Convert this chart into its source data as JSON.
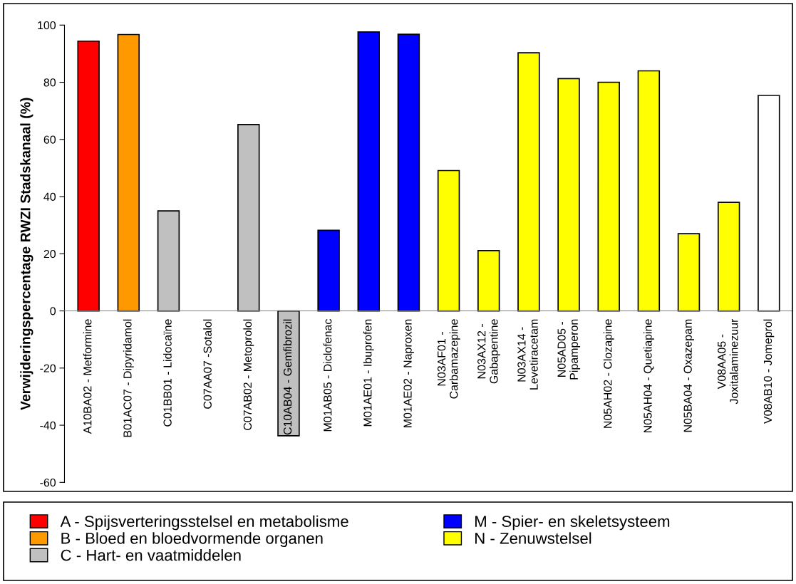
{
  "chart_data": {
    "type": "bar",
    "ylabel": "Verwijderingspercentage RWZI Stadskanaal (%)",
    "categories": [
      "A10BA02 - Metformine",
      "B01AC07 - Dipyridamol",
      "C01BB01 - Lidocaïne",
      "C07AA07 -Sotalol",
      "C07AB02 - Metoprolol",
      "C10AB04 - Gemfibrozil",
      "M01AB05 - Diclofenac",
      "M01AE01 - Ibuprofen",
      "M01AE02 - Naproxen",
      "N03AF01 -\nCarbamazepine",
      "N03AX12 -\nGabapentine",
      "N03AX14 -\nLevetiracetam",
      "N05AD05 -\nPipamperon",
      "N05AH02 - Clozapine",
      "N05AH04 - Quetiapine",
      "N05BA04 - Oxazepam",
      "V08AA05 -\nJoxitalaminezuur",
      "V08AB10 - Jomeprol"
    ],
    "series": [
      {
        "name": "A - Spijsverteringsstelsel en metabolisme",
        "color": "#ff0000",
        "values": [
          94.4,
          null,
          null,
          null,
          null,
          null,
          null,
          null,
          null,
          null,
          null,
          null,
          null,
          null,
          null,
          null,
          null,
          null
        ]
      },
      {
        "name": "B - Bloed en bloedvormende organen",
        "color": "#ff9900",
        "values": [
          null,
          96.7,
          null,
          null,
          null,
          null,
          null,
          null,
          null,
          null,
          null,
          null,
          null,
          null,
          null,
          null,
          null,
          null
        ]
      },
      {
        "name": "C - Hart- en vaatmiddelen",
        "color": "#c0c0c0",
        "values": [
          null,
          null,
          35,
          null,
          65.2,
          -43.7,
          null,
          null,
          null,
          null,
          null,
          null,
          null,
          null,
          null,
          null,
          null,
          null
        ]
      },
      {
        "name": "M - Spier- en skeletsysteem",
        "color": "#0000ff",
        "values": [
          null,
          null,
          null,
          null,
          null,
          null,
          28.2,
          97.6,
          96.8,
          null,
          null,
          null,
          null,
          null,
          null,
          null,
          null,
          null
        ]
      },
      {
        "name": "N - Zenuwstelsel",
        "color": "#ffff00",
        "values": [
          null,
          null,
          null,
          null,
          null,
          null,
          null,
          null,
          null,
          49.1,
          21.1,
          90.3,
          81.3,
          80,
          84,
          27,
          38,
          null
        ]
      },
      {
        "color": "#ffffff",
        "values": [
          null,
          null,
          null,
          null,
          null,
          null,
          null,
          null,
          null,
          null,
          null,
          null,
          null,
          null,
          null,
          null,
          null,
          75.4
        ]
      }
    ],
    "ylim": [
      -60,
      100
    ],
    "yticks": [
      -60,
      -40,
      -20,
      0,
      20,
      40,
      60,
      80,
      100
    ],
    "grid": false,
    "legend": "bottom"
  }
}
